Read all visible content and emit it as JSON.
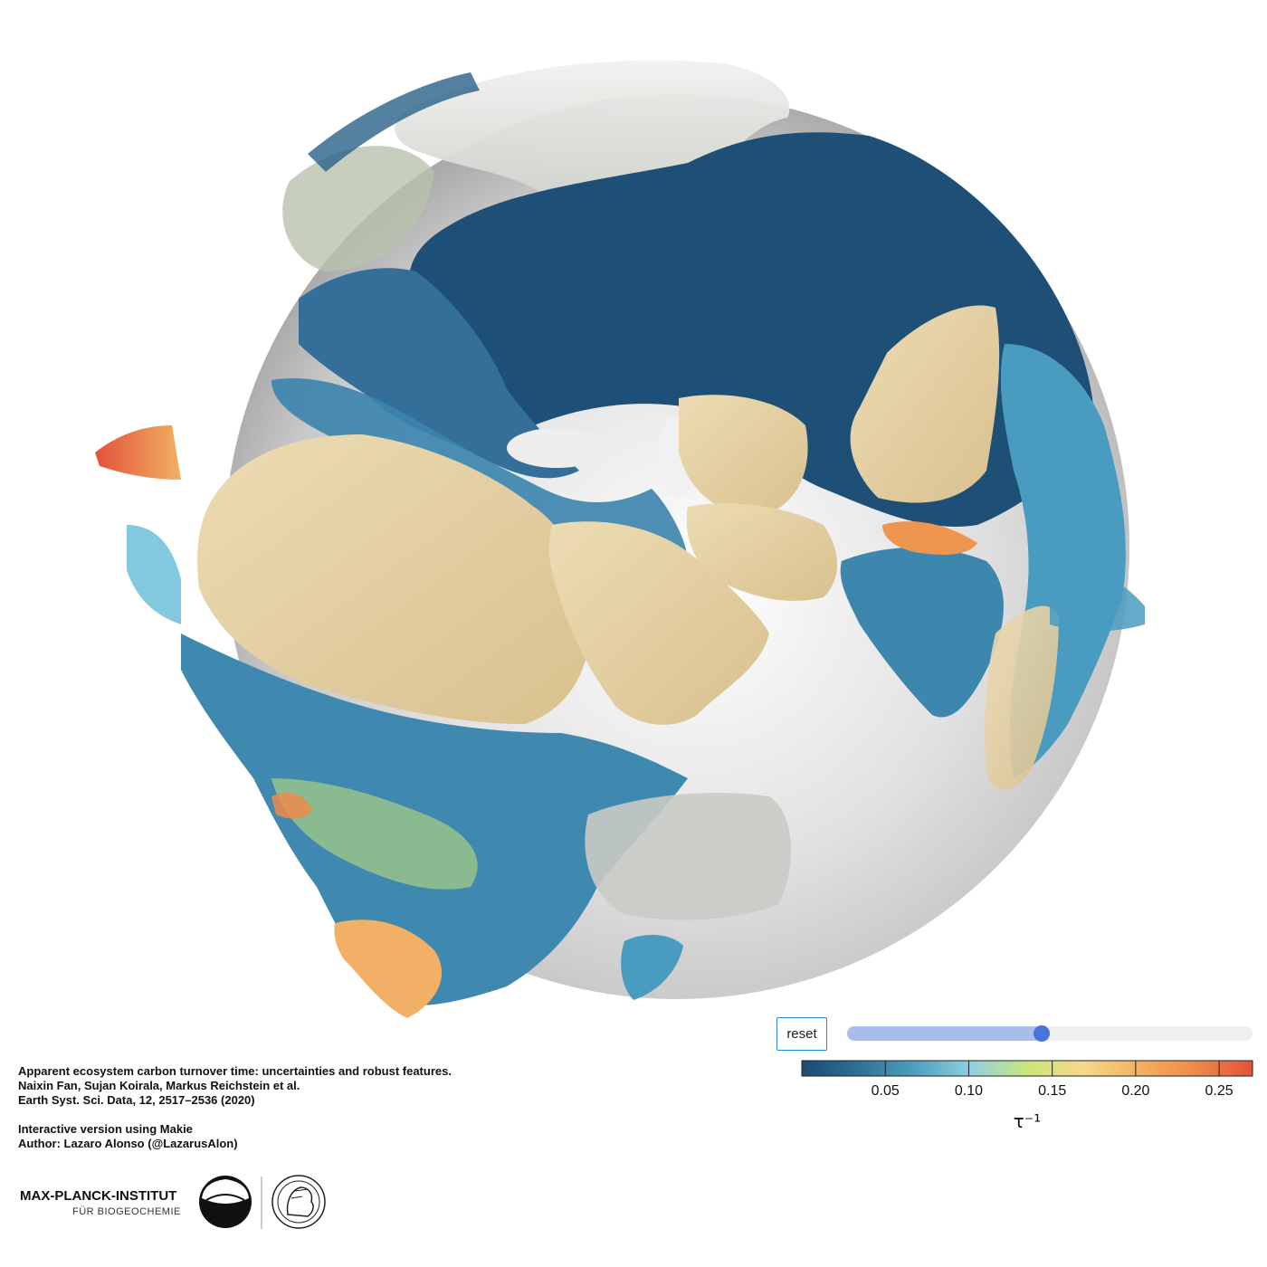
{
  "visualization": {
    "title": "Interactive globe of apparent ecosystem carbon turnover time",
    "colormap": [
      "#1d4a72",
      "#2f6f96",
      "#4d9fbf",
      "#8fd0e0",
      "#c9e67a",
      "#f6d88a",
      "#f3b062",
      "#ee8a4a",
      "#e0533c"
    ]
  },
  "controls": {
    "reset_label": "reset",
    "slider_value": 0.48
  },
  "chart_data": {
    "type": "heatmap",
    "title": "τ⁻¹ colorbar",
    "ylabel": "τ⁻¹",
    "range": [
      0.0,
      0.27
    ],
    "ticks": [
      0.05,
      0.1,
      0.15,
      0.2,
      0.25
    ],
    "tick_labels": [
      "0.05",
      "0.10",
      "0.15",
      "0.20",
      "0.25"
    ],
    "colors": [
      "#1d4a72",
      "#2f6f96",
      "#4d9fbf",
      "#8fd0e0",
      "#c9e67a",
      "#f6d88a",
      "#f3b062",
      "#ee8a4a",
      "#e0533c"
    ]
  },
  "credits": {
    "line1": "Apparent ecosystem carbon turnover time: uncertainties and robust features.",
    "line2": "Naixin Fan, Sujan Koirala, Markus Reichstein et al.",
    "line3": "Earth Syst. Sci. Data, 12, 2517–2536 (2020)",
    "line4": "Interactive version using Makie",
    "line5": "Author: Lazaro Alonso (@LazarusAlon)"
  },
  "logo": {
    "name_line1": "MAX-PLANCK-INSTITUT",
    "name_line2": "FÜR BIOGEOCHEMIE"
  }
}
